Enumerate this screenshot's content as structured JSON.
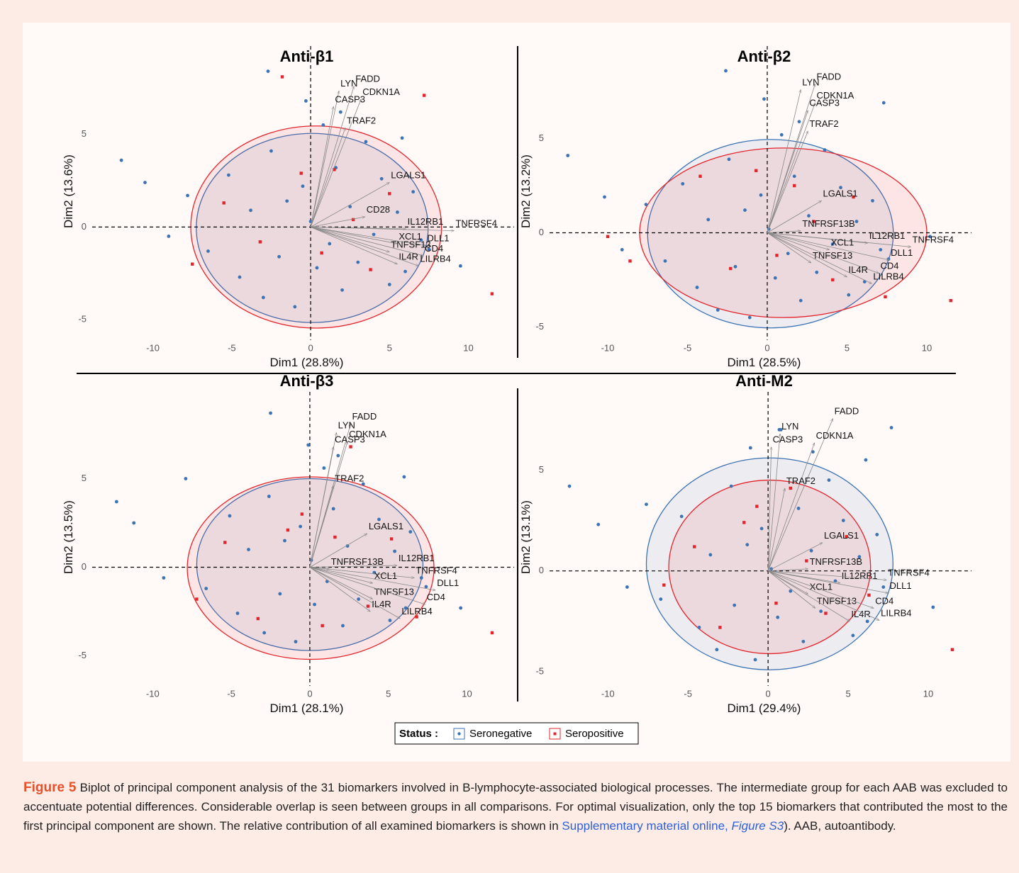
{
  "chart_data": [
    {
      "type": "biplot",
      "title": "Anti-β1",
      "x_label": "Dim1 (28.8%)",
      "y_label": "Dim2 (13.6%)",
      "xlim": [
        -13.4,
        12.9
      ],
      "ylim": [
        -6.1,
        9.95
      ],
      "xticks": [
        -10,
        -5,
        0,
        5,
        10
      ],
      "yticks": [
        -5,
        0,
        5
      ],
      "series": [
        {
          "name": "Seronegative",
          "color": "#3b73b4",
          "x": [
            -12,
            -10.5,
            -9,
            -7.8,
            -6.5,
            -5.2,
            -4.5,
            -3.8,
            -3,
            -2.5,
            -2,
            -1.5,
            -1,
            -0.5,
            0,
            0.4,
            0.8,
            1.2,
            1.6,
            2,
            2.5,
            3,
            3.5,
            4,
            4.5,
            5,
            5.5,
            6,
            6.5,
            7,
            7.5,
            -2.7,
            -0.3,
            1.9,
            5.8,
            9.5
          ],
          "y": [
            3.6,
            2.4,
            -0.5,
            1.7,
            -1.3,
            2.8,
            -2.7,
            0.9,
            -3.8,
            4.1,
            -1.6,
            1.4,
            -4.3,
            2.2,
            0.3,
            -2.2,
            5.5,
            -0.9,
            3.2,
            -3.4,
            1.1,
            -1.9,
            4.6,
            -0.4,
            2.6,
            -3.1,
            0.8,
            -2.4,
            1.9,
            -0.7,
            -1.2,
            8.4,
            6.8,
            6.2,
            4.8,
            -2.1
          ],
          "ellipse": {
            "cx": 0.1,
            "cy": -0.05,
            "rx": 7.35,
            "ry": 5.1
          }
        },
        {
          "name": "Seropositive",
          "color": "#e3242b",
          "x": [
            -7.5,
            -5.5,
            -3.2,
            -1.8,
            -0.6,
            0.7,
            1.5,
            2.7,
            3.8,
            5,
            7.2,
            11.5
          ],
          "y": [
            -2,
            1.3,
            -0.8,
            8.1,
            2.9,
            -1.4,
            3.1,
            0.4,
            -2.3,
            1.8,
            7.1,
            -3.6
          ],
          "ellipse": {
            "cx": 0.35,
            "cy": 0,
            "rx": 7.95,
            "ry": 5.45
          }
        }
      ],
      "loadings": [
        {
          "name": "FADD",
          "x": 2.75,
          "y": 7.6
        },
        {
          "name": "LYN",
          "x": 1.8,
          "y": 7.35
        },
        {
          "name": "CDKN1A",
          "x": 3.2,
          "y": 6.9
        },
        {
          "name": "CASP3",
          "x": 1.45,
          "y": 6.5
        },
        {
          "name": "TRAF2",
          "x": 2.2,
          "y": 5.35
        },
        {
          "name": "LGALS1",
          "x": 5.0,
          "y": 2.4
        },
        {
          "name": "CD28",
          "x": 3.45,
          "y": 0.55
        },
        {
          "name": "IL12RB1",
          "x": 6.05,
          "y": -0.1
        },
        {
          "name": "TNFRSF4",
          "x": 9.1,
          "y": -0.2
        },
        {
          "name": "XCL1",
          "x": 5.5,
          "y": -0.9
        },
        {
          "name": "DLL1",
          "x": 7.3,
          "y": -1.0
        },
        {
          "name": "TNFSF13",
          "x": 5.0,
          "y": -1.35
        },
        {
          "name": "CD4",
          "x": 7.15,
          "y": -1.55
        },
        {
          "name": "IL4R",
          "x": 5.5,
          "y": -2.0
        },
        {
          "name": "LILRB4",
          "x": 6.85,
          "y": -2.1
        }
      ]
    },
    {
      "type": "biplot",
      "title": "Anti-β2",
      "x_label": "Dim1 (28.5%)",
      "y_label": "Dim2 (13.2%)",
      "xlim": [
        -13.2,
        12.8
      ],
      "ylim": [
        -5.7,
        10.1
      ],
      "xticks": [
        -10,
        -5,
        0,
        5,
        10
      ],
      "yticks": [
        -5,
        0,
        5
      ],
      "series": [
        {
          "name": "Seronegative",
          "color": "#3b73b4",
          "x": [
            -12.5,
            -10.2,
            -9.1,
            -7.6,
            -6.4,
            -5.3,
            -4.4,
            -3.7,
            -3.1,
            -2.4,
            -2,
            -1.4,
            -1.1,
            -0.4,
            0.1,
            0.5,
            0.9,
            1.3,
            1.7,
            2.1,
            2.6,
            3.1,
            3.6,
            4.1,
            4.6,
            5.1,
            5.6,
            6.1,
            6.6,
            7.1,
            7.6,
            -2.6,
            -0.2,
            2,
            7.3,
            10.2
          ],
          "y": [
            4.1,
            1.9,
            -0.9,
            1.5,
            -1.5,
            2.6,
            -2.9,
            0.7,
            -4.1,
            3.9,
            -1.8,
            1.2,
            -4.5,
            2,
            0.2,
            -2.4,
            5.2,
            -1.1,
            3,
            -3.6,
            0.9,
            -2.1,
            4.4,
            -0.6,
            2.4,
            -3.3,
            0.6,
            -2.6,
            1.7,
            -0.9,
            -1.4,
            8.6,
            7.1,
            5.9,
            6.9,
            -0.2
          ],
          "ellipse": {
            "cx": 0.2,
            "cy": -0.05,
            "rx": 7.7,
            "ry": 5.0
          }
        },
        {
          "name": "Seropositive",
          "color": "#e3242b",
          "x": [
            -10,
            -8.6,
            -4.2,
            -2.3,
            -0.7,
            0.6,
            1.7,
            2.9,
            4.1,
            5.4,
            7.4,
            11.5
          ],
          "y": [
            -0.2,
            -1.5,
            3,
            -1.9,
            3.3,
            -1.2,
            2.5,
            0.6,
            -2.5,
            1.9,
            -3.4,
            -3.6
          ],
          "ellipse": {
            "cx": 1.0,
            "cy": 0,
            "rx": 9.0,
            "ry": 4.5
          }
        }
      ],
      "loadings": [
        {
          "name": "FADD",
          "x": 3.0,
          "y": 7.9
        },
        {
          "name": "LYN",
          "x": 2.1,
          "y": 7.6
        },
        {
          "name": "CDKN1A",
          "x": 3.0,
          "y": 6.9
        },
        {
          "name": "CASP3",
          "x": 2.55,
          "y": 6.5
        },
        {
          "name": "TRAF2",
          "x": 2.55,
          "y": 5.4
        },
        {
          "name": "LGALS1",
          "x": 3.4,
          "y": 1.7
        },
        {
          "name": "TNFRSF13B",
          "x": 2.1,
          "y": 0.1
        },
        {
          "name": "IL12RB1",
          "x": 6.3,
          "y": -0.55
        },
        {
          "name": "TNFRSF4",
          "x": 9.0,
          "y": -0.75
        },
        {
          "name": "XCL1",
          "x": 3.9,
          "y": -0.9
        },
        {
          "name": "DLL1",
          "x": 7.65,
          "y": -1.45
        },
        {
          "name": "TNFSF13",
          "x": 2.75,
          "y": -1.6
        },
        {
          "name": "CD4",
          "x": 7.0,
          "y": -2.15
        },
        {
          "name": "IL4R",
          "x": 5.0,
          "y": -2.35
        },
        {
          "name": "LILRB4",
          "x": 6.55,
          "y": -2.7
        }
      ]
    },
    {
      "type": "biplot",
      "title": "Anti-β3",
      "x_label": "Dim1 (28.1%)",
      "y_label": "Dim2 (13.5%)",
      "xlim": [
        -13.4,
        13.0
      ],
      "ylim": [
        -6.7,
        10.1
      ],
      "xticks": [
        -10,
        -5,
        0,
        5,
        10
      ],
      "yticks": [
        -5,
        0,
        5
      ],
      "series": [
        {
          "name": "Seronegative",
          "color": "#3b73b4",
          "x": [
            -12.3,
            -11.2,
            -9.3,
            -7.9,
            -6.6,
            -5.1,
            -4.6,
            -3.9,
            -2.9,
            -2.6,
            -1.9,
            -1.6,
            -0.9,
            -0.6,
            0.1,
            0.3,
            0.9,
            1.1,
            1.5,
            2.1,
            2.4,
            3.1,
            3.4,
            4.1,
            4.4,
            5.1,
            5.4,
            6.1,
            6.4,
            7.1,
            7.4,
            -2.5,
            -0.1,
            1.8,
            6,
            9.6
          ],
          "y": [
            3.7,
            2.5,
            -0.6,
            5,
            -1.2,
            2.9,
            -2.6,
            1,
            -3.7,
            4,
            -1.5,
            1.5,
            -4.2,
            2.3,
            0.4,
            -2.1,
            5.6,
            -0.8,
            3.3,
            -3.3,
            1.2,
            -1.8,
            4.7,
            -0.3,
            2.7,
            -3,
            0.9,
            -2.3,
            2,
            -0.6,
            -1.1,
            8.7,
            6.9,
            6.3,
            5.1,
            -2.3
          ],
          "ellipse": {
            "cx": 0,
            "cy": 0.15,
            "rx": 7.2,
            "ry": 4.85
          }
        },
        {
          "name": "Seropositive",
          "color": "#e3242b",
          "x": [
            -7.2,
            -5.4,
            -3.3,
            -1.4,
            -0.5,
            0.8,
            1.6,
            2.6,
            3.7,
            5.2,
            6.8,
            11.6
          ],
          "y": [
            -1.8,
            1.4,
            -2.9,
            2.1,
            3,
            -3.3,
            1.7,
            6.8,
            -2.2,
            1.6,
            -2.8,
            -3.7
          ],
          "ellipse": {
            "cx": 0.05,
            "cy": -0.05,
            "rx": 7.85,
            "ry": 5.15
          }
        }
      ],
      "loadings": [
        {
          "name": "FADD",
          "x": 2.6,
          "y": 8.1
        },
        {
          "name": "LYN",
          "x": 1.7,
          "y": 7.6
        },
        {
          "name": "CDKN1A",
          "x": 2.4,
          "y": 7.1
        },
        {
          "name": "CASP3",
          "x": 1.5,
          "y": 6.8
        },
        {
          "name": "TRAF2",
          "x": 1.5,
          "y": 4.6
        },
        {
          "name": "LGALS1",
          "x": 3.65,
          "y": 1.9
        },
        {
          "name": "TNFRSF13B",
          "x": 1.25,
          "y": -0.1
        },
        {
          "name": "IL12RB1",
          "x": 5.55,
          "y": 0.1
        },
        {
          "name": "TNFRSF4",
          "x": 6.65,
          "y": -0.6
        },
        {
          "name": "XCL1",
          "x": 4.0,
          "y": -0.9
        },
        {
          "name": "DLL1",
          "x": 8.0,
          "y": -1.3
        },
        {
          "name": "TNFSF13",
          "x": 4.0,
          "y": -1.8
        },
        {
          "name": "CD4",
          "x": 7.35,
          "y": -2.1
        },
        {
          "name": "IL4R",
          "x": 3.85,
          "y": -2.5
        },
        {
          "name": "LILRB4",
          "x": 5.75,
          "y": -2.9
        }
      ]
    },
    {
      "type": "biplot",
      "title": "Anti-M2",
      "x_label": "Dim1 (29.4%)",
      "y_label": "Dim2 (13.1%)",
      "xlim": [
        -13.2,
        12.7
      ],
      "ylim": [
        -5.7,
        9.05
      ],
      "xticks": [
        -10,
        -5,
        0,
        5,
        10
      ],
      "yticks": [
        -5,
        0,
        5
      ],
      "series": [
        {
          "name": "Seronegative",
          "color": "#3b73b4",
          "x": [
            -12.4,
            -10.6,
            -8.8,
            -7.6,
            -6.7,
            -5.4,
            -4.3,
            -3.6,
            -3.2,
            -2.3,
            -2.1,
            -1.3,
            -0.8,
            -0.4,
            0.2,
            0.6,
            0.7,
            1.4,
            1.9,
            2.2,
            2.7,
            3.3,
            3.8,
            4.2,
            4.7,
            5.3,
            5.7,
            6.2,
            6.8,
            7.2,
            7.7,
            -1.1,
            0.8,
            2.8,
            6.1,
            10.3
          ],
          "y": [
            4.2,
            2.3,
            -0.8,
            3.3,
            -1.4,
            2.7,
            -2.8,
            0.8,
            -3.9,
            4.2,
            -1.7,
            1.3,
            -4.4,
            2.1,
            0.1,
            -2.3,
            7,
            -1,
            3.1,
            -3.5,
            1,
            -2,
            4.5,
            -0.5,
            2.5,
            -3.2,
            0.7,
            -2.5,
            1.8,
            -0.8,
            7.1,
            6.1,
            7,
            5.9,
            5.5,
            -1.8
          ],
          "ellipse": {
            "cx": 0.1,
            "cy": 0.35,
            "rx": 7.7,
            "ry": 5.25
          }
        },
        {
          "name": "Seropositive",
          "color": "#e3242b",
          "x": [
            -6.5,
            -4.6,
            -3,
            -1.5,
            -0.7,
            0.5,
            1.4,
            2.4,
            3.6,
            4.9,
            6.3,
            11.5
          ],
          "y": [
            -0.7,
            1.2,
            -2.8,
            2.4,
            3.2,
            -1.6,
            4.1,
            0.5,
            -2.1,
            1.7,
            -1.2,
            -3.9
          ],
          "ellipse": {
            "cx": 0.1,
            "cy": 0.2,
            "rx": 6.3,
            "ry": 4.3
          }
        }
      ],
      "loadings": [
        {
          "name": "FADD",
          "x": 4.05,
          "y": 7.55
        },
        {
          "name": "LYN",
          "x": 0.75,
          "y": 6.8
        },
        {
          "name": "CDKN1A",
          "x": 2.9,
          "y": 6.35
        },
        {
          "name": "CASP3",
          "x": 0.2,
          "y": 6.15
        },
        {
          "name": "TRAF2",
          "x": 1.05,
          "y": 4.1
        },
        {
          "name": "LGALS1",
          "x": 3.4,
          "y": 1.4
        },
        {
          "name": "TNFRSF13B",
          "x": 2.5,
          "y": 0.1
        },
        {
          "name": "IL12RB1",
          "x": 4.5,
          "y": -0.6
        },
        {
          "name": "TNFRSF4",
          "x": 7.4,
          "y": -0.45
        },
        {
          "name": "XCL1",
          "x": 2.5,
          "y": -1.15
        },
        {
          "name": "DLL1",
          "x": 7.5,
          "y": -1.1
        },
        {
          "name": "TNFSF13",
          "x": 2.95,
          "y": -1.85
        },
        {
          "name": "CD4",
          "x": 6.6,
          "y": -1.85
        },
        {
          "name": "IL4R",
          "x": 5.1,
          "y": -2.5
        },
        {
          "name": "LILRB4",
          "x": 6.95,
          "y": -2.45
        }
      ]
    }
  ],
  "legend": {
    "title": "Status :"
  },
  "caption": {
    "label": "Figure 5",
    "text": "Biplot of principal component analysis of the 31 biomarkers involved in B-lymphocyte-associated biological processes. The intermediate group for each AAB was excluded to accentuate potential differences. Considerable overlap is seen between groups in all comparisons. For optimal visualization, only the top 15 biomarkers that contributed the most to the first principal component are shown. The relative contribution of all examined biomarkers is shown in",
    "link": "Supplementary material online,",
    "link_figure": "Figure S3",
    "tail": "). AAB, autoantibody."
  }
}
